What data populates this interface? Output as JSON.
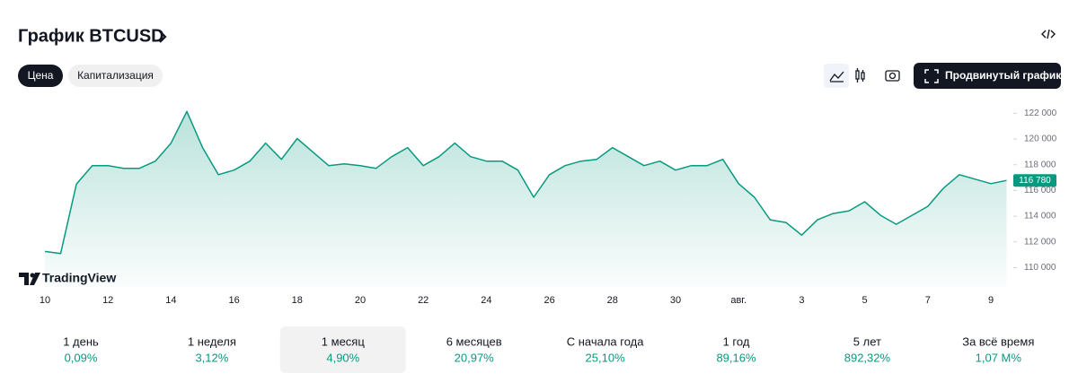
{
  "header": {
    "title": "График BTCUSD"
  },
  "tabs": [
    {
      "label": "Цена",
      "selected": true
    },
    {
      "label": "Капитализация",
      "selected": false
    }
  ],
  "advanced_button": "Продвинутый график",
  "watermark": "TradingView",
  "chart_data": {
    "type": "area",
    "color": "#089981",
    "categories": [
      "10",
      null,
      null,
      null,
      "12",
      null,
      null,
      null,
      "14",
      null,
      null,
      null,
      "16",
      null,
      null,
      null,
      "18",
      null,
      null,
      null,
      "20",
      null,
      null,
      null,
      "22",
      null,
      null,
      null,
      "24",
      null,
      null,
      null,
      "26",
      null,
      null,
      null,
      "28",
      null,
      null,
      null,
      "30",
      null,
      null,
      null,
      "авг.",
      null,
      null,
      null,
      "3",
      null,
      null,
      null,
      "5",
      null,
      null,
      null,
      "7",
      null,
      null,
      null,
      "9",
      null
    ],
    "values": [
      111260,
      111100,
      116500,
      117930,
      117930,
      117720,
      117720,
      118280,
      119680,
      122140,
      119330,
      117230,
      117580,
      118280,
      119680,
      118420,
      120040,
      118980,
      117930,
      118070,
      117930,
      117720,
      118630,
      119330,
      117930,
      118630,
      119680,
      118630,
      118280,
      118280,
      117580,
      115470,
      117230,
      117930,
      118280,
      118420,
      119330,
      118630,
      117930,
      118280,
      117580,
      117930,
      117930,
      118420,
      116530,
      115470,
      113720,
      113510,
      112530,
      113720,
      114210,
      114420,
      115120,
      114070,
      113370,
      114070,
      114770,
      116180,
      117230,
      116880,
      116530,
      116780
    ],
    "ylim": [
      108500,
      123000
    ],
    "yticks": [
      {
        "value": 110000,
        "label": "110 000"
      },
      {
        "value": 112000,
        "label": "112 000"
      },
      {
        "value": 114000,
        "label": "114 000"
      },
      {
        "value": 116000,
        "label": "116 000"
      },
      {
        "value": 118000,
        "label": "118 000"
      },
      {
        "value": 120000,
        "label": "120 000"
      },
      {
        "value": 122000,
        "label": "122 000"
      }
    ],
    "last_price": {
      "value": 116780,
      "label": "116 780"
    }
  },
  "periods": [
    {
      "name": "1 день",
      "change": "0,09%",
      "selected": false
    },
    {
      "name": "1 неделя",
      "change": "3,12%",
      "selected": false
    },
    {
      "name": "1 месяц",
      "change": "4,90%",
      "selected": true
    },
    {
      "name": "6 месяцев",
      "change": "20,97%",
      "selected": false
    },
    {
      "name": "С начала года",
      "change": "25,10%",
      "selected": false
    },
    {
      "name": "1 год",
      "change": "89,16%",
      "selected": false
    },
    {
      "name": "5 лет",
      "change": "892,32%",
      "selected": false
    },
    {
      "name": "За всё время",
      "change": "1,07 M%",
      "selected": false
    }
  ]
}
